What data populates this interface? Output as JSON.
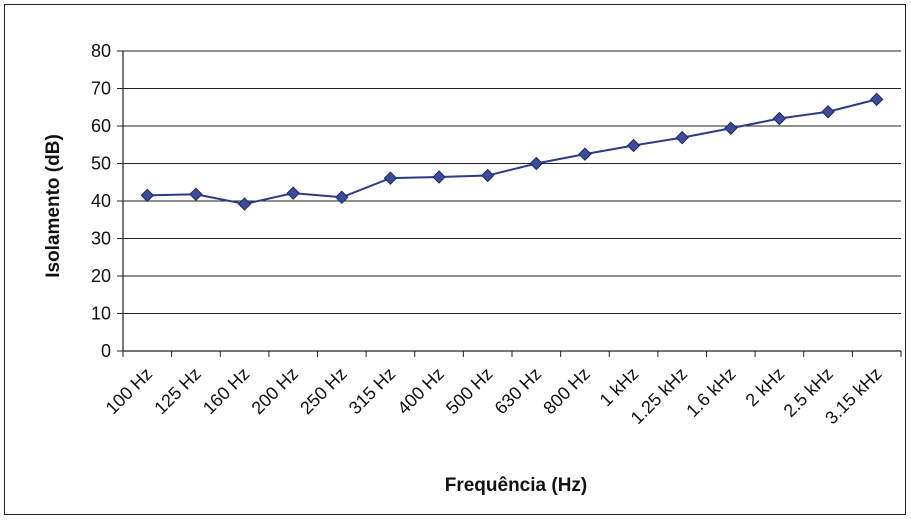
{
  "chart_data": {
    "type": "line",
    "title": "",
    "xlabel": "Frequência (Hz)",
    "ylabel": "Isolamento (dB)",
    "categories": [
      "100 Hz",
      "125 Hz",
      "160 Hz",
      "200 Hz",
      "250 Hz",
      "315 Hz",
      "400 Hz",
      "500 Hz",
      "630 Hz",
      "800 Hz",
      "1 kHz",
      "1.25 kHz",
      "1.6 kHz",
      "2 kHz",
      "2.5 kHz",
      "3.15 kHz"
    ],
    "series": [
      {
        "values": [
          41.5,
          41.8,
          39.2,
          42.1,
          41.0,
          46.1,
          46.4,
          46.8,
          50.0,
          52.5,
          54.8,
          56.9,
          59.4,
          62.0,
          63.8,
          67.1
        ]
      }
    ],
    "ylim": [
      0,
      80
    ],
    "yticks": [
      0,
      10,
      20,
      30,
      40,
      50,
      60,
      70,
      80
    ],
    "grid": true,
    "colors": {
      "line": "#2b3a8c",
      "marker": "#3a4c9a",
      "grid": "#222222"
    }
  }
}
